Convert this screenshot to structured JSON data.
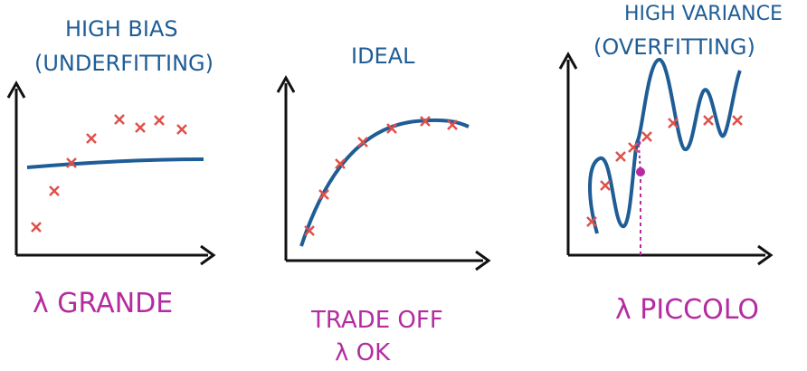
{
  "panels": [
    {
      "title_line1": "HIGH BIAS",
      "title_line2": "(UNDERFITTING)",
      "caption_line1": "λ GRANDE",
      "caption_line2": ""
    },
    {
      "title_line1": "IDEAL",
      "title_line2": "",
      "caption_line1": "TRADE OFF",
      "caption_line2": "λ OK"
    },
    {
      "title_line1": "HIGH VARIANCE",
      "title_line2": "(OVERFITTING)",
      "caption_line1": "λ PICCOLO",
      "caption_line2": ""
    }
  ],
  "colors": {
    "ink": "#1f5d96",
    "axes": "#111111",
    "data": "#e0504a",
    "caption": "#b42ca0",
    "marker": "#b42ca0"
  }
}
